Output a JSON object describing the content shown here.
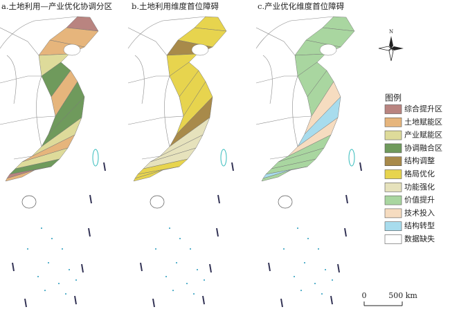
{
  "panels": [
    {
      "title": "a.土地利用—产业优化协调分区"
    },
    {
      "title": "b.土地利用维度首位障碍"
    },
    {
      "title": "c.产业优化维度首位障碍"
    }
  ],
  "legend": {
    "title": "图例",
    "items": [
      {
        "label": "综合提升区",
        "color": "#b98480"
      },
      {
        "label": "土地赋能区",
        "color": "#e6b57c"
      },
      {
        "label": "产业赋能区",
        "color": "#dedb9a"
      },
      {
        "label": "协调融合区",
        "color": "#6f9a5c"
      },
      {
        "label": "结构调整",
        "color": "#a88a4a"
      },
      {
        "label": "格局优化",
        "color": "#e7d44e"
      },
      {
        "label": "功能强化",
        "color": "#e6e2bc"
      },
      {
        "label": "价值提升",
        "color": "#a9d6a0"
      },
      {
        "label": "技术投入",
        "color": "#f6dcc0"
      },
      {
        "label": "结构转型",
        "color": "#a8dced"
      },
      {
        "label": "数据缺失",
        "color": "#ffffff"
      }
    ]
  },
  "north": "N",
  "scale": {
    "zero": "0",
    "length": "500 km"
  }
}
